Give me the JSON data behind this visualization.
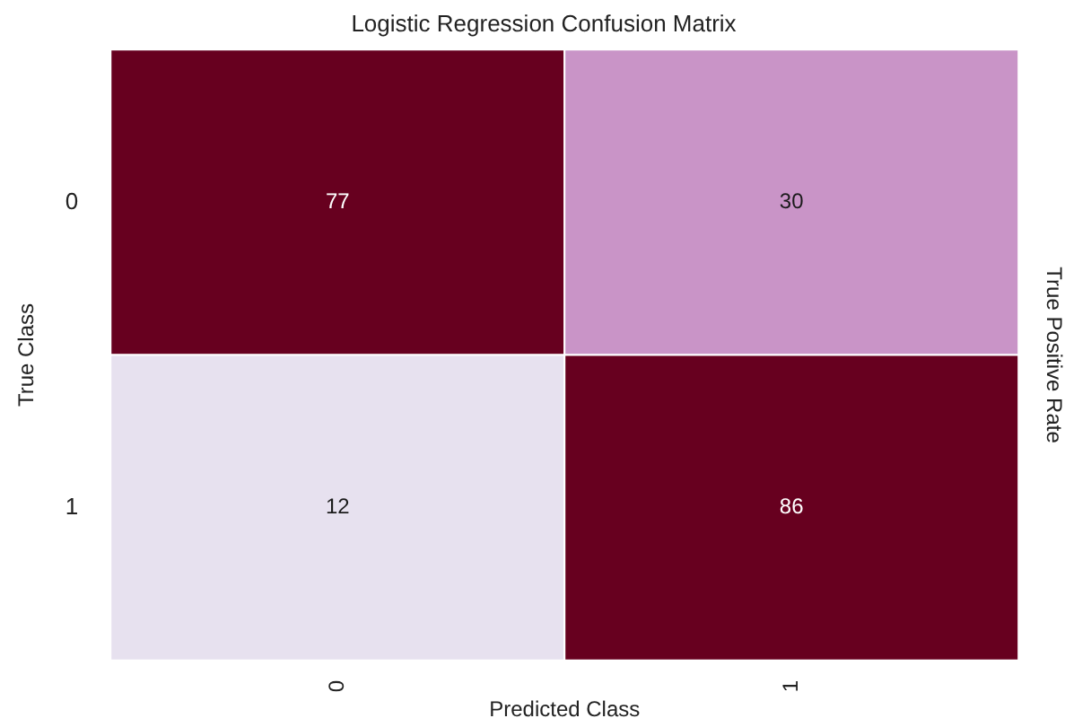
{
  "chart_data": {
    "type": "heatmap",
    "title": "Logistic Regression Confusion Matrix",
    "xlabel": "Predicted Class",
    "ylabel": "True Class",
    "y2label": "True Positive Rate",
    "categories": [
      "0",
      "1"
    ],
    "y_categories": [
      "0",
      "1"
    ],
    "data_labels": true,
    "cells": [
      [
        77,
        30
      ],
      [
        12,
        86
      ]
    ],
    "colors": [
      [
        "#67001f",
        "#c994c7"
      ],
      [
        "#e7e1ef",
        "#67001f"
      ]
    ]
  }
}
